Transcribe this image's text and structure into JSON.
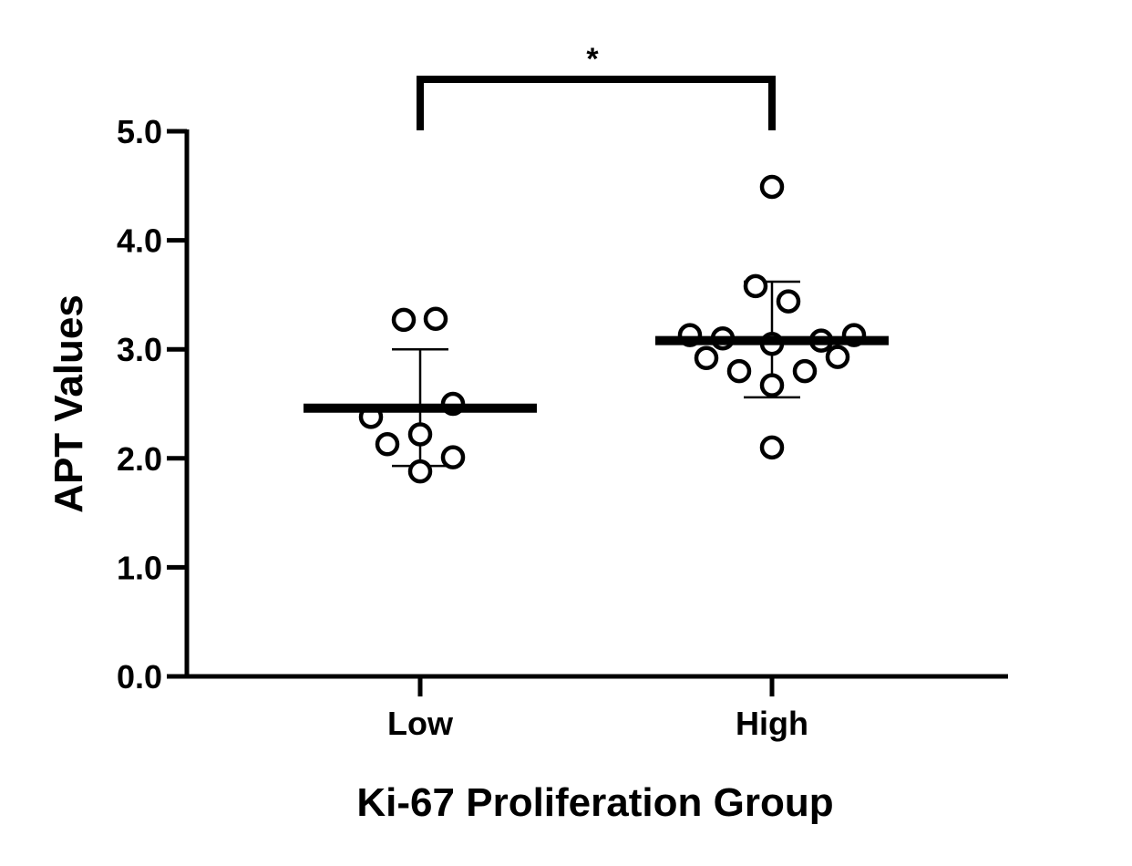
{
  "chart_data": {
    "type": "scatter",
    "xlabel": "Ki-67 Proliferation Group",
    "ylabel": "APT Values",
    "categories": [
      "Low",
      "High"
    ],
    "ylim": [
      0,
      5
    ],
    "yticks": [
      "0.0",
      "1.0",
      "2.0",
      "3.0",
      "4.0",
      "5.0"
    ],
    "grid": false,
    "series": [
      {
        "category": "Low",
        "points": [
          3.27,
          3.28,
          2.5,
          2.38,
          2.22,
          2.13,
          2.01,
          1.88
        ],
        "mean": 2.46,
        "sd_upper": 3.0,
        "sd_lower": 1.93
      },
      {
        "category": "High",
        "points": [
          4.49,
          3.58,
          3.44,
          3.13,
          3.1,
          3.05,
          3.08,
          3.13,
          2.92,
          2.8,
          2.8,
          2.93,
          2.67,
          2.1
        ],
        "mean": 3.08,
        "sd_upper": 3.62,
        "sd_lower": 2.56
      }
    ],
    "significance": {
      "label": "*",
      "between": [
        "Low",
        "High"
      ]
    }
  }
}
